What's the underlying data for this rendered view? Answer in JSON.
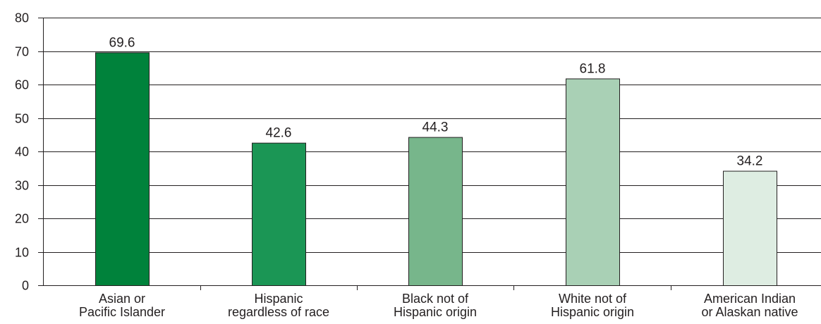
{
  "chart_data": {
    "type": "bar",
    "title": "",
    "xlabel": "",
    "ylabel": "",
    "ylim": [
      0,
      80
    ],
    "yticks": [
      0,
      10,
      20,
      30,
      40,
      50,
      60,
      70,
      80
    ],
    "grid": true,
    "legend": "none",
    "categories": [
      [
        "Asian or",
        "Pacific Islander"
      ],
      [
        "Hispanic",
        "regardless of race"
      ],
      [
        "Black not of",
        "Hispanic origin"
      ],
      [
        "White not of",
        "Hispanic origin"
      ],
      [
        "American Indian",
        "or Alaskan native"
      ]
    ],
    "values": [
      69.6,
      42.6,
      44.3,
      61.8,
      34.2
    ],
    "value_labels": [
      "69.6",
      "42.6",
      "44.3",
      "61.8",
      "34.2"
    ],
    "colors": [
      "#00823b",
      "#1b9655",
      "#77b68b",
      "#a9d0b5",
      "#deede2"
    ],
    "gridline_color": "#231f20",
    "bar_outline_color": "#231f20"
  }
}
